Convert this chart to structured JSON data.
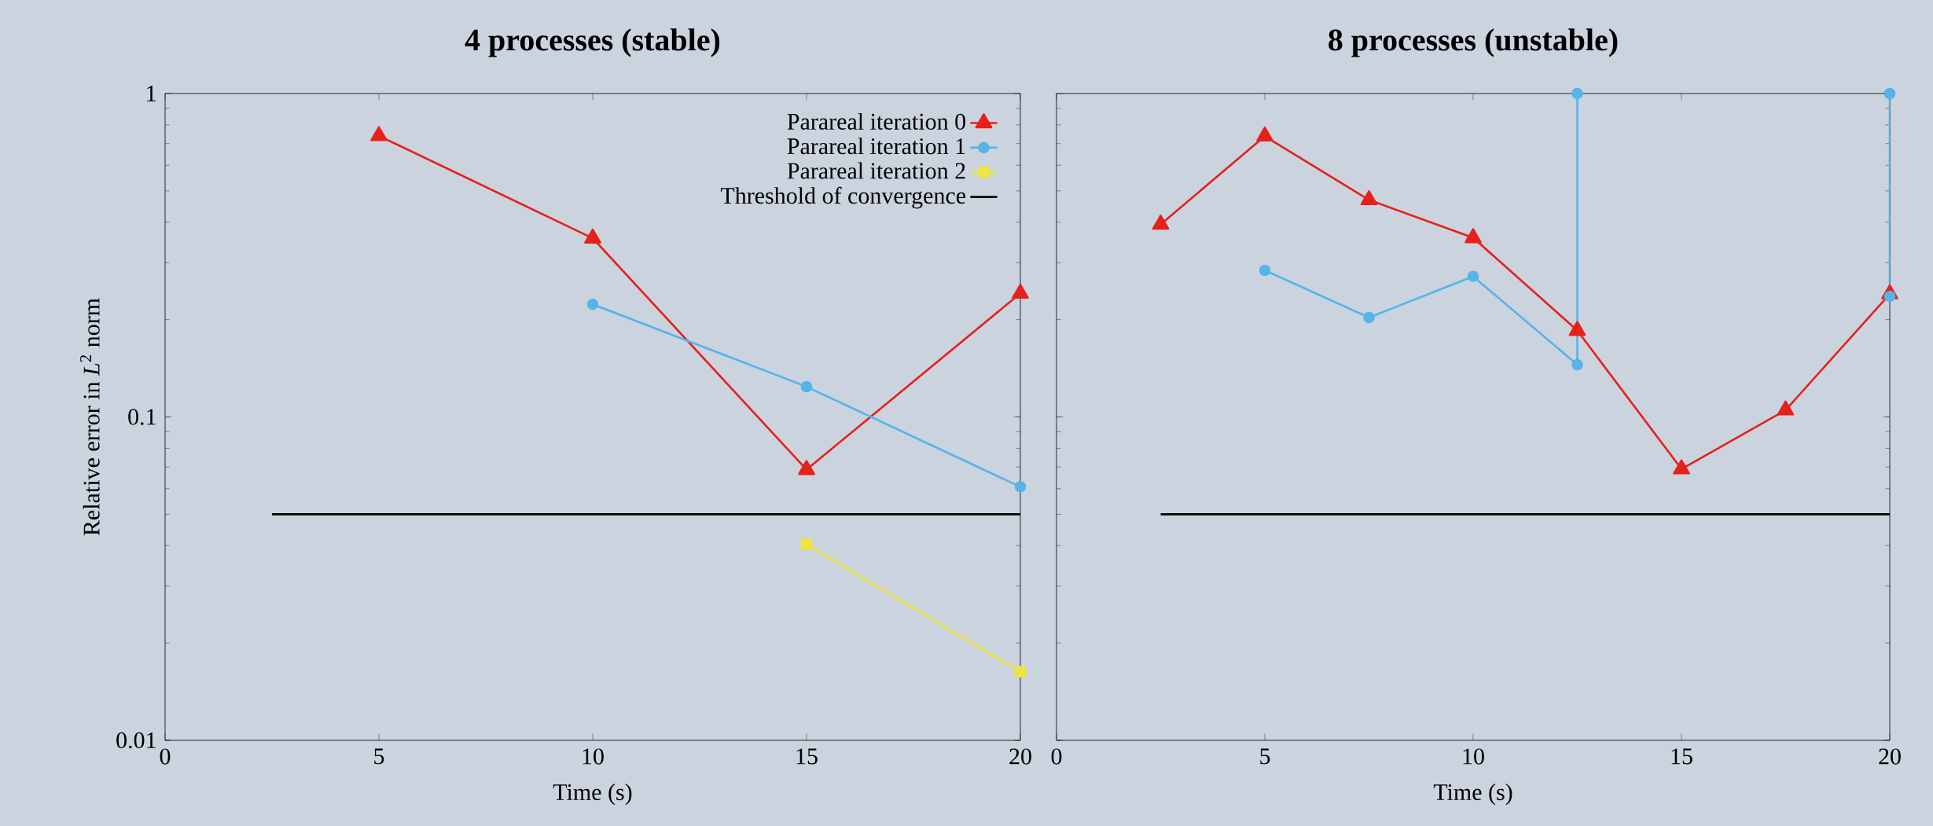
{
  "chart_data": [
    {
      "type": "line",
      "title": "**4 processes (stable)**",
      "xlabel": "Time (s)",
      "ylabel": "Relative error in *L*$^{2}$ norm",
      "xlim": [
        0,
        20
      ],
      "xticks": [
        0,
        5,
        10,
        15,
        20
      ],
      "ylim": [
        0.01,
        1
      ],
      "yticks": [
        0.01,
        0.1,
        1
      ],
      "log": "y",
      "legend": "top right",
      "series": [
        {
          "name": "Parareal iteration 0",
          "color": "#e5211a",
          "marker": "triangle",
          "x": [
            5,
            10,
            15,
            20
          ],
          "values": [
            0.74,
            0.357,
            0.0687,
            0.241
          ]
        },
        {
          "name": "Parareal iteration 1",
          "color": "#56b4e9",
          "marker": "circle",
          "x": [
            10,
            15,
            20
          ],
          "values": [
            0.223,
            0.124,
            0.0608
          ]
        },
        {
          "name": "Parareal iteration 2",
          "color": "#f0e442",
          "marker": "square",
          "x": [
            15,
            20
          ],
          "values": [
            0.0404,
            0.0163
          ]
        },
        {
          "name": "Threshold of convergence",
          "color": "#000000",
          "marker": "none",
          "x": [
            2.5,
            20
          ],
          "values": [
            0.05,
            0.05
          ]
        }
      ]
    },
    {
      "type": "line",
      "title": "**8 processes (unstable)**",
      "xlabel": "Time (s)",
      "xlim": [
        0,
        20
      ],
      "xticks": [
        0,
        5,
        10,
        15,
        20
      ],
      "ylim": [
        0.01,
        1
      ],
      "yticks": [
        0.01,
        0.1,
        1
      ],
      "log": "y",
      "tick_labels": "x",
      "series": [
        {
          "color": "#e5211a",
          "marker": "triangle",
          "x": [
            2.5,
            5,
            7.5,
            10,
            12.5,
            15,
            17.5,
            20
          ],
          "values": [
            0.394,
            0.738,
            0.469,
            0.358,
            0.185,
            0.069,
            0.105,
            0.24
          ]
        },
        {
          "color": "#56b4e9",
          "marker": "circle",
          "x": [
            5,
            7.5,
            10,
            12.5,
            12.5,
            16,
            20,
            20
          ],
          "values": [
            0.284,
            0.203,
            0.272,
            0.145,
            1,
            null,
            1,
            0.236
          ]
        },
        {
          "color": "#000000",
          "marker": "none",
          "x": [
            2.5,
            20
          ],
          "values": [
            0.05,
            0.05
          ]
        }
      ]
    }
  ]
}
